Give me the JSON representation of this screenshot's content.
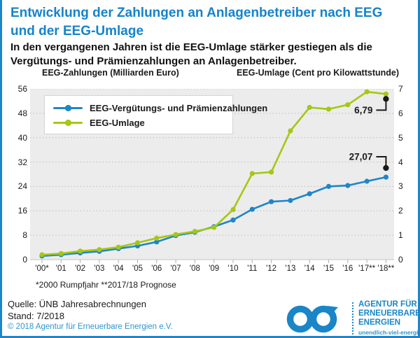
{
  "title": {
    "line1": "Entwicklung der Zahlungen an Anlagenbetreiber nach EEG",
    "line2": "und der EEG-Umlage"
  },
  "subtitle": {
    "line1": "In den vergangenen Jahren ist die EEG-Umlage stärker gestiegen als die",
    "line2": "Vergütungs- und Prämienzahlungen an Anlagenbetreiber."
  },
  "legend": [
    {
      "label": "EEG-Vergütungs- und Prämienzahlungen",
      "color": "#1e86c8"
    },
    {
      "label": "EEG-Umlage",
      "color": "#a5c715"
    }
  ],
  "chart_data": {
    "type": "line",
    "x": [
      "'00*",
      "'01",
      "'02",
      "'03",
      "'04",
      "'05",
      "'06",
      "'07",
      "'08",
      "'09",
      "'10",
      "'11",
      "'12",
      "'13",
      "'14",
      "'15",
      "'16",
      "'17**",
      "'18**"
    ],
    "series": [
      {
        "name": "EEG-Vergütungs- und Prämienzahlungen",
        "axis": "left",
        "color": "#1e86c8",
        "values": [
          1.2,
          1.6,
          2.2,
          2.7,
          3.6,
          4.5,
          5.8,
          7.9,
          9.0,
          10.8,
          13.0,
          16.5,
          19.0,
          19.4,
          21.6,
          24.0,
          24.3,
          25.7,
          27.07
        ]
      },
      {
        "name": "EEG-Umlage",
        "axis": "right",
        "color": "#a5c715",
        "values": [
          0.2,
          0.25,
          0.35,
          0.41,
          0.51,
          0.69,
          0.88,
          1.03,
          1.16,
          1.32,
          2.05,
          3.53,
          3.59,
          5.28,
          6.24,
          6.17,
          6.35,
          6.88,
          6.79
        ]
      }
    ],
    "left_axis": {
      "header": "EEG-Zahlungen (Milliarden Euro)",
      "min": 0,
      "max": 56,
      "step": 8,
      "ticks": [
        "0",
        "8",
        "16",
        "24",
        "32",
        "40",
        "48",
        "56"
      ]
    },
    "right_axis": {
      "header": "EEG-Umlage (Cent pro Kilowattstunde)",
      "min": 0,
      "max": 7,
      "step": 1,
      "ticks": [
        "0",
        "1",
        "2",
        "3",
        "4",
        "5",
        "6",
        "7"
      ]
    },
    "annotations": [
      {
        "text": "27,07",
        "series": 0,
        "side": "above"
      },
      {
        "text": "6,79",
        "series": 1,
        "side": "below"
      }
    ],
    "grid": "horizontal dotted",
    "legend_position": "top-left inside"
  },
  "footnote": "*2000 Rumpfjahr  **2017/18 Prognose",
  "footer": {
    "source": "Quelle: ÜNB Jahresabrechnungen",
    "stand": "Stand: 7/2018",
    "copyright": "© 2018 Agentur für Erneuerbare Energien e.V."
  },
  "logo": {
    "line1": "AGENTUR FÜR",
    "line2": "ERNEUERBARE",
    "line3": "ENERGIEN",
    "url": "unendlich-viel-energie.de"
  },
  "colors": {
    "title_blue": "#1583cb",
    "line_blue": "#1e86c8",
    "line_green": "#a5c715",
    "annotation_black": "#1a1a1a",
    "plot_background": "#ececec",
    "gridline": "#bdbdbd",
    "frame_border": "#1e86c8",
    "logo_blue": "#1a86c8",
    "copyright_blue": "#2e95cf"
  }
}
